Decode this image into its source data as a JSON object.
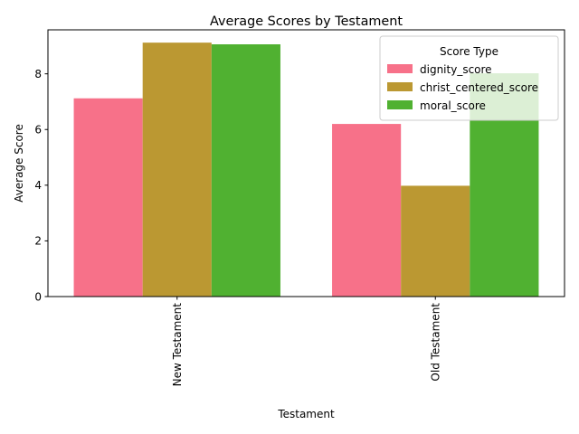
{
  "chart_data": {
    "type": "bar",
    "title": "Average Scores by Testament",
    "xlabel": "Testament",
    "ylabel": "Average Score",
    "categories": [
      "New Testament",
      "Old Testament"
    ],
    "series": [
      {
        "name": "dignity_score",
        "color": "#f77189",
        "values": [
          7.12,
          6.2
        ]
      },
      {
        "name": "christ_centered_score",
        "color": "#bb9832",
        "values": [
          9.12,
          3.98
        ]
      },
      {
        "name": "moral_score",
        "color": "#50b131",
        "values": [
          9.06,
          8.02
        ]
      }
    ],
    "ylim": [
      0,
      9.58
    ],
    "yticks": [
      0,
      2,
      4,
      6,
      8
    ],
    "legend": {
      "title": "Score Type",
      "position": "top-right"
    },
    "grid": false
  }
}
